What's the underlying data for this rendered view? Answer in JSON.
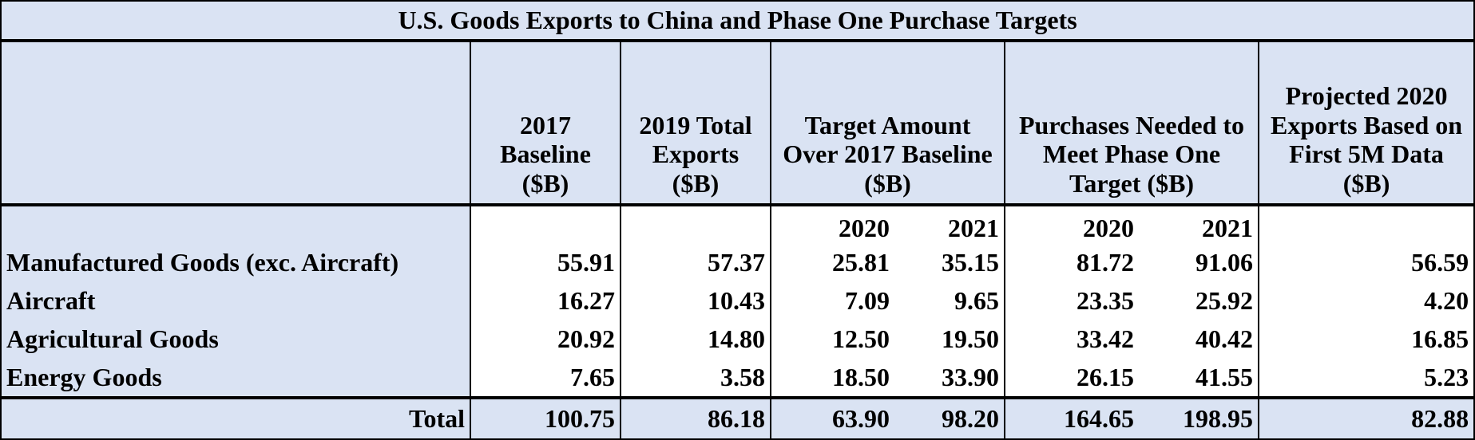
{
  "title": "U.S. Goods Exports to China and Phase One Purchase Targets",
  "headers": {
    "baseline_2017": "2017 Baseline ($B)",
    "exports_2019": "2019 Total Exports ($B)",
    "target_amount": "Target Amount Over 2017 Baseline ($B)",
    "purchases_needed": "Purchases Needed to Meet Phase One Target ($B)",
    "projected_2020": "Projected 2020 Exports Based on First 5M Data ($B)"
  },
  "subheaders": {
    "target_2020": "2020",
    "target_2021": "2021",
    "needed_2020": "2020",
    "needed_2021": "2021"
  },
  "rows": [
    {
      "label": "Manufactured Goods (exc. Aircraft)",
      "values": [
        "55.91",
        "57.37",
        "25.81",
        "35.15",
        "81.72",
        "91.06",
        "56.59"
      ]
    },
    {
      "label": "Aircraft",
      "values": [
        "16.27",
        "10.43",
        "7.09",
        "9.65",
        "23.35",
        "25.92",
        "4.20"
      ]
    },
    {
      "label": "Agricultural Goods",
      "values": [
        "20.92",
        "14.80",
        "12.50",
        "19.50",
        "33.42",
        "40.42",
        "16.85"
      ]
    },
    {
      "label": "Energy Goods",
      "values": [
        "7.65",
        "3.58",
        "18.50",
        "33.90",
        "26.15",
        "41.55",
        "5.23"
      ]
    }
  ],
  "total": {
    "label": "Total",
    "values": [
      "100.75",
      "86.18",
      "63.90",
      "98.20",
      "164.65",
      "198.95",
      "82.88"
    ]
  },
  "colors": {
    "header_bg": "#dae3f3",
    "cell_bg": "#ffffff",
    "border": "#000000"
  }
}
